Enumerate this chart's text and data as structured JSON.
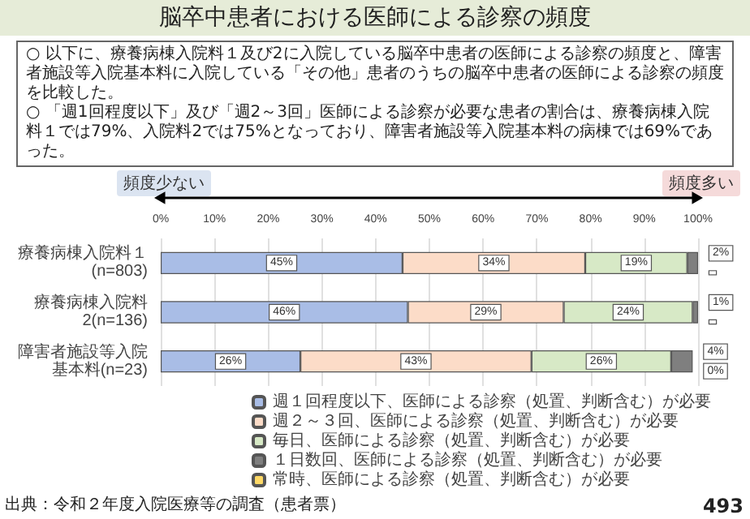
{
  "chart_data": {
    "type": "bar",
    "orientation": "horizontal",
    "stacked": true,
    "title": "脳卒中患者における医師による診察の頻度",
    "annotations": [
      "○ 以下に、療養病棟入院料１及び2に入院している脳卒中患者の医師による診察の頻度と、障害者施設等入院基本料に入院している「その他」患者のうちの脳卒中患者の医師による診察の頻度を比較した。",
      "○ 「週1回程度以下」及び「週2～3回」医師による診察が必要な患者の割合は、療養病棟入院料１では79%、入院料2では75%となっており、障害者施設等入院基本料の病棟では69%であった。",
      "頻度少ない",
      "頻度多い",
      "出典：令和２年度入院医療等の調査（患者票）",
      "493"
    ],
    "categories": [
      "療養病棟入院料１(n=803)",
      "療養病棟入院料2(n=136)",
      "障害者施設等入院基本料(n=23)"
    ],
    "series": [
      {
        "name": "週１回程度以下、医師による診察（処置、判断含む）が必要",
        "color": "#a9bde6",
        "values": [
          45,
          46,
          26
        ],
        "value_labels": [
          "45%",
          "46%",
          "26%"
        ]
      },
      {
        "name": "週２～３回、医師による診察（処置、判断含む）が必要",
        "color": "#fcdcc8",
        "values": [
          34,
          29,
          43
        ],
        "value_labels": [
          "34%",
          "29%",
          "43%"
        ]
      },
      {
        "name": "毎日、医師による診察（処置、判断含む）が必要",
        "color": "#d7e9c6",
        "values": [
          19,
          24,
          26
        ],
        "value_labels": [
          "19%",
          "24%",
          "26%"
        ]
      },
      {
        "name": "１日数回、医師による診察（処置、判断含む）が必要",
        "color": "#7f7f7f",
        "values": [
          2,
          1,
          4
        ],
        "value_labels": [
          "2%",
          "1%",
          "4%"
        ]
      },
      {
        "name": "常時、医師による診察（処置、判断含む）が必要",
        "color": "#ffd966",
        "values": [
          0,
          0,
          0
        ],
        "value_labels": [
          null,
          null,
          "0%"
        ]
      }
    ],
    "xlim": [
      0,
      100
    ],
    "xticks": [
      {
        "value": 0,
        "label": "0%"
      },
      {
        "value": 10,
        "label": "10%"
      },
      {
        "value": 20,
        "label": "20%"
      },
      {
        "value": 30,
        "label": "30%"
      },
      {
        "value": 40,
        "label": "40%"
      },
      {
        "value": 50,
        "label": "50%"
      },
      {
        "value": 60,
        "label": "60%"
      },
      {
        "value": 70,
        "label": "70%"
      },
      {
        "value": 80,
        "label": "80%"
      },
      {
        "value": 90,
        "label": "90%"
      },
      {
        "value": 100,
        "label": "100%"
      }
    ],
    "grid": "x",
    "legend": "bottom"
  }
}
